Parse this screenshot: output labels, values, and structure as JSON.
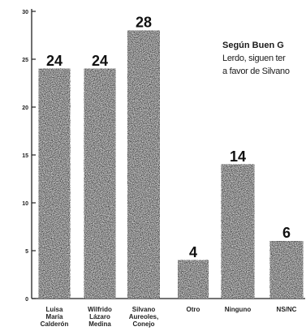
{
  "chart_data": {
    "type": "bar",
    "title": "",
    "xlabel": "",
    "ylabel": "",
    "ylim": [
      0,
      30
    ],
    "yticks": [
      0,
      5,
      10,
      15,
      20,
      25,
      30
    ],
    "grid": false,
    "legend": "none",
    "categories": [
      [
        "Luisa",
        "María",
        "Calderón"
      ],
      [
        "Wilfrido",
        "Lázaro",
        "Medina"
      ],
      [
        "Silvano",
        "Aureoles,",
        "Conejo"
      ],
      [
        "Otro"
      ],
      [
        "Ninguno"
      ],
      [
        "NS/NC"
      ]
    ],
    "values": [
      24,
      24,
      28,
      4,
      14,
      6
    ],
    "value_labels": [
      "24",
      "24",
      "28",
      "4",
      "14",
      "6"
    ],
    "bar_fill": "#444444",
    "annotation": [
      "Según Buen G",
      "Lerdo, siguen ter",
      "a favor de Silvano"
    ]
  }
}
